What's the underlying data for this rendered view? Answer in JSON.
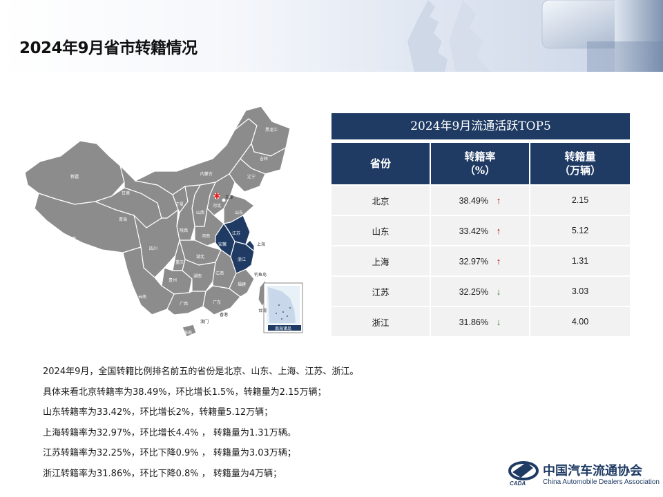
{
  "page": {
    "title": "2024年9月省市转籍情况"
  },
  "map": {
    "highlight_color": "#1f3b64",
    "base_color": "#8c8c8c",
    "beijing_marker_color": "#e02020",
    "labels": {
      "heilongjiang": "黑龙江",
      "jilin": "吉林",
      "liaoning": "辽宁",
      "neimenggu": "内蒙古",
      "xinjiang": "新疆",
      "gansu": "甘肃",
      "qinghai": "青海",
      "xizang": "西藏",
      "sichuan": "四川",
      "yunnan": "云南",
      "guizhou": "贵州",
      "guangxi": "广西",
      "guangdong": "广东",
      "hainan": "海南",
      "hunan": "湖南",
      "hubei": "湖北",
      "jiangxi": "江西",
      "fujian": "福建",
      "henan": "河南",
      "hebei": "河北",
      "shanxi": "山西",
      "shaanxi": "陕西",
      "ningxia": "宁夏",
      "shandong": "山东",
      "tianjin": "天津",
      "beijing": "北京",
      "jiangsu": "江苏",
      "anhui": "安徽",
      "zhejiang": "浙江",
      "shanghai": "上海",
      "chongqing": "重庆",
      "hongkong": "香港",
      "macau": "澳门",
      "taiwan": "台湾",
      "diaoyudao": "钓鱼岛",
      "nanhai": "南海诸岛"
    }
  },
  "table": {
    "title": "2024年9月流通活跃TOP5",
    "headers": {
      "province": "省份",
      "rate_line1": "转籍率",
      "rate_line2": "（%）",
      "volume_line1": "转籍量",
      "volume_line2": "（万辆）"
    },
    "rows": [
      {
        "province": "北京",
        "rate": "38.49%",
        "trend": "up",
        "arrow": "↑",
        "volume": "2.15"
      },
      {
        "province": "山东",
        "rate": "33.42%",
        "trend": "up",
        "arrow": "↑",
        "volume": "5.12"
      },
      {
        "province": "上海",
        "rate": "32.97%",
        "trend": "up",
        "arrow": "↑",
        "volume": "1.31"
      },
      {
        "province": "江苏",
        "rate": "32.25%",
        "trend": "down",
        "arrow": "↓",
        "volume": "3.03"
      },
      {
        "province": "浙江",
        "rate": "31.86%",
        "trend": "down",
        "arrow": "↓",
        "volume": "4.00"
      }
    ]
  },
  "summary": [
    "2024年9月，全国转籍比例排名前五的省份是北京、山东、上海、江苏、浙江。",
    "具体来看北京转籍率为38.49%，环比增长1.5%，转籍量为2.15万辆；",
    "山东转籍率为33.42%，环比增长2%，转籍量5.12万辆；",
    "上海转籍率为32.97%，环比增长4.4% ，  转籍量为1.31万辆。",
    "江苏转籍率为32.25%，环比下降0.9% ，  转籍量为3.03万辆；",
    "浙江转籍率为31.86%，环比下降0.8% ，  转籍量为4万辆；"
  ],
  "logo": {
    "name_cn": "中国汽车流通协会",
    "name_en": "China Automobile Dealers Association",
    "mark_text": "CADA"
  }
}
